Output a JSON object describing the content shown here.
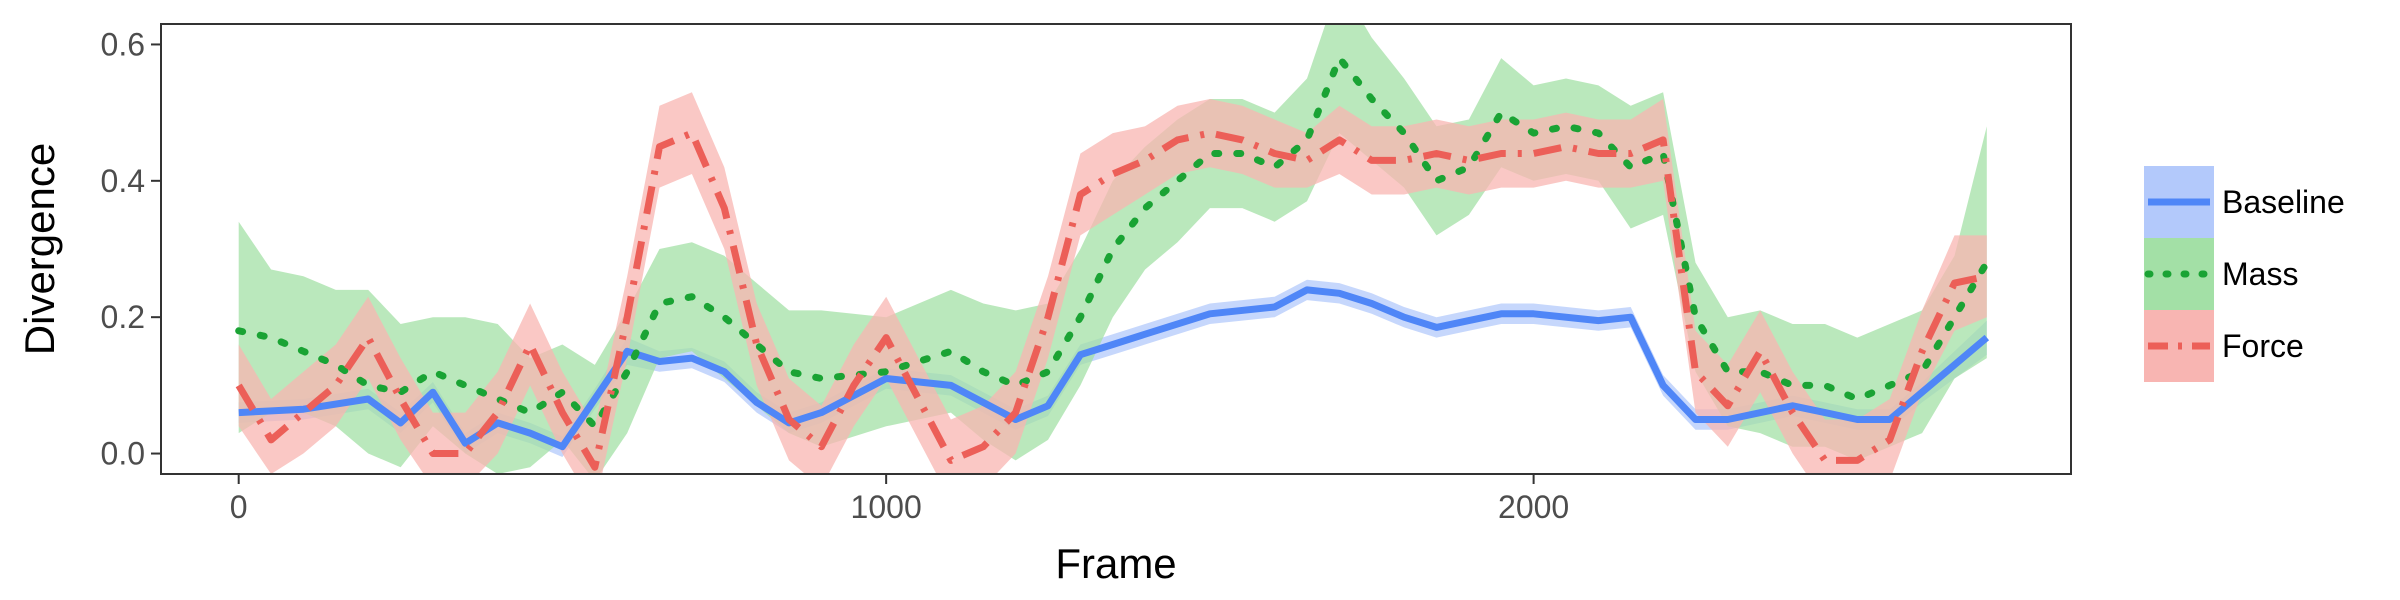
{
  "chart_data": {
    "type": "line",
    "xlabel": "Frame",
    "ylabel": "Divergence",
    "xlim": [
      -120,
      2830
    ],
    "ylim": [
      -0.03,
      0.63
    ],
    "xticks": [
      0,
      1000,
      2000
    ],
    "xtick_labels": [
      "0",
      "1000",
      "2000"
    ],
    "yticks": [
      0.0,
      0.2,
      0.4,
      0.6
    ],
    "ytick_labels": [
      "0.0",
      "0.2",
      "0.4",
      "0.6"
    ],
    "grid": false,
    "legend_position": "right",
    "series": [
      {
        "name": "Baseline",
        "color": "#4f86f7",
        "band_color": "#b3c9fb",
        "line_style": "solid",
        "x": [
          0,
          100,
          200,
          250,
          300,
          350,
          400,
          450,
          500,
          550,
          600,
          650,
          700,
          750,
          800,
          850,
          900,
          1000,
          1100,
          1200,
          1250,
          1300,
          1350,
          1400,
          1500,
          1600,
          1650,
          1700,
          1750,
          1800,
          1850,
          1900,
          1950,
          2000,
          2100,
          2150,
          2200,
          2250,
          2300,
          2400,
          2450,
          2500,
          2550,
          2600,
          2700
        ],
        "y": [
          0.06,
          0.065,
          0.08,
          0.045,
          0.09,
          0.015,
          0.045,
          0.03,
          0.01,
          0.08,
          0.15,
          0.135,
          0.14,
          0.12,
          0.075,
          0.045,
          0.06,
          0.11,
          0.1,
          0.05,
          0.07,
          0.145,
          0.16,
          0.175,
          0.205,
          0.215,
          0.24,
          0.235,
          0.22,
          0.2,
          0.185,
          0.195,
          0.205,
          0.205,
          0.195,
          0.2,
          0.1,
          0.05,
          0.05,
          0.07,
          0.06,
          0.05,
          0.05,
          0.09,
          0.17
        ],
        "lower": [
          0.045,
          0.05,
          0.065,
          0.03,
          0.075,
          0.0,
          0.03,
          0.015,
          -0.005,
          0.065,
          0.13,
          0.12,
          0.125,
          0.105,
          0.06,
          0.03,
          0.045,
          0.095,
          0.085,
          0.035,
          0.055,
          0.13,
          0.145,
          0.16,
          0.19,
          0.2,
          0.225,
          0.22,
          0.205,
          0.185,
          0.17,
          0.18,
          0.19,
          0.19,
          0.18,
          0.185,
          0.085,
          0.035,
          0.035,
          0.055,
          0.045,
          0.035,
          0.035,
          0.075,
          0.145
        ],
        "upper": [
          0.075,
          0.08,
          0.095,
          0.06,
          0.105,
          0.03,
          0.06,
          0.045,
          0.025,
          0.095,
          0.17,
          0.15,
          0.155,
          0.135,
          0.09,
          0.06,
          0.075,
          0.125,
          0.115,
          0.065,
          0.085,
          0.16,
          0.175,
          0.19,
          0.22,
          0.23,
          0.255,
          0.25,
          0.235,
          0.215,
          0.2,
          0.21,
          0.22,
          0.22,
          0.21,
          0.215,
          0.115,
          0.065,
          0.065,
          0.085,
          0.075,
          0.065,
          0.065,
          0.105,
          0.195
        ]
      },
      {
        "name": "Mass",
        "color": "#1aa334",
        "band_color": "#a3e0a6",
        "line_style": "dotted",
        "x": [
          0,
          50,
          100,
          150,
          200,
          250,
          300,
          350,
          400,
          450,
          500,
          550,
          600,
          650,
          700,
          750,
          800,
          850,
          900,
          1000,
          1100,
          1150,
          1200,
          1250,
          1300,
          1350,
          1400,
          1450,
          1500,
          1550,
          1600,
          1650,
          1700,
          1750,
          1800,
          1850,
          1900,
          1950,
          2000,
          2050,
          2100,
          2150,
          2200,
          2250,
          2300,
          2350,
          2400,
          2450,
          2500,
          2550,
          2600,
          2650,
          2700
        ],
        "y": [
          0.18,
          0.17,
          0.15,
          0.13,
          0.1,
          0.09,
          0.12,
          0.1,
          0.08,
          0.06,
          0.09,
          0.04,
          0.12,
          0.22,
          0.23,
          0.2,
          0.16,
          0.12,
          0.11,
          0.12,
          0.15,
          0.12,
          0.1,
          0.12,
          0.2,
          0.3,
          0.36,
          0.4,
          0.44,
          0.44,
          0.42,
          0.46,
          0.58,
          0.52,
          0.47,
          0.4,
          0.42,
          0.5,
          0.47,
          0.48,
          0.47,
          0.42,
          0.44,
          0.2,
          0.12,
          0.12,
          0.1,
          0.1,
          0.08,
          0.1,
          0.12,
          0.2,
          0.28
        ],
        "lower": [
          0.03,
          0.06,
          0.06,
          0.04,
          0.0,
          -0.02,
          0.04,
          0.0,
          -0.03,
          -0.02,
          0.02,
          -0.04,
          0.03,
          0.14,
          0.15,
          0.11,
          0.07,
          0.03,
          0.01,
          0.04,
          0.06,
          0.02,
          -0.01,
          0.02,
          0.1,
          0.2,
          0.27,
          0.31,
          0.36,
          0.36,
          0.34,
          0.37,
          0.47,
          0.43,
          0.39,
          0.32,
          0.35,
          0.42,
          0.4,
          0.41,
          0.4,
          0.33,
          0.35,
          0.12,
          0.04,
          0.03,
          0.01,
          0.01,
          -0.01,
          0.01,
          0.03,
          0.11,
          0.14
        ],
        "upper": [
          0.34,
          0.27,
          0.26,
          0.24,
          0.24,
          0.19,
          0.2,
          0.2,
          0.19,
          0.14,
          0.16,
          0.13,
          0.21,
          0.3,
          0.31,
          0.29,
          0.25,
          0.21,
          0.21,
          0.2,
          0.24,
          0.22,
          0.21,
          0.22,
          0.3,
          0.4,
          0.45,
          0.49,
          0.52,
          0.52,
          0.5,
          0.55,
          0.69,
          0.61,
          0.55,
          0.48,
          0.49,
          0.58,
          0.54,
          0.55,
          0.54,
          0.51,
          0.53,
          0.28,
          0.2,
          0.21,
          0.19,
          0.19,
          0.17,
          0.19,
          0.21,
          0.29,
          0.48
        ]
      },
      {
        "name": "Force",
        "color": "#ec5f58",
        "band_color": "#f8b5b2",
        "line_style": "dashdot",
        "x": [
          0,
          50,
          100,
          150,
          200,
          250,
          300,
          350,
          400,
          450,
          500,
          550,
          600,
          650,
          700,
          750,
          800,
          850,
          900,
          950,
          1000,
          1050,
          1100,
          1150,
          1200,
          1250,
          1300,
          1350,
          1400,
          1450,
          1500,
          1550,
          1600,
          1650,
          1700,
          1750,
          1800,
          1850,
          1900,
          1950,
          2000,
          2050,
          2100,
          2150,
          2200,
          2250,
          2300,
          2350,
          2400,
          2450,
          2500,
          2550,
          2600,
          2650,
          2700
        ],
        "y": [
          0.1,
          0.02,
          0.06,
          0.1,
          0.17,
          0.08,
          0.0,
          0.0,
          0.06,
          0.16,
          0.06,
          -0.02,
          0.2,
          0.45,
          0.47,
          0.36,
          0.16,
          0.05,
          0.01,
          0.1,
          0.17,
          0.08,
          -0.01,
          0.01,
          0.06,
          0.2,
          0.38,
          0.41,
          0.43,
          0.46,
          0.47,
          0.46,
          0.44,
          0.43,
          0.46,
          0.43,
          0.43,
          0.44,
          0.43,
          0.44,
          0.44,
          0.45,
          0.44,
          0.44,
          0.46,
          0.12,
          0.07,
          0.15,
          0.06,
          -0.01,
          -0.01,
          0.02,
          0.15,
          0.25,
          0.26
        ],
        "lower": [
          0.04,
          -0.03,
          0.0,
          0.04,
          0.11,
          0.02,
          -0.05,
          -0.05,
          0.0,
          0.1,
          0.0,
          -0.08,
          0.14,
          0.39,
          0.41,
          0.3,
          0.1,
          -0.01,
          -0.05,
          0.04,
          0.11,
          0.02,
          -0.07,
          -0.05,
          0.0,
          0.14,
          0.32,
          0.35,
          0.38,
          0.41,
          0.42,
          0.41,
          0.39,
          0.39,
          0.41,
          0.38,
          0.38,
          0.39,
          0.38,
          0.39,
          0.39,
          0.4,
          0.39,
          0.39,
          0.4,
          0.06,
          0.01,
          0.09,
          0.0,
          -0.07,
          -0.07,
          -0.04,
          0.09,
          0.18,
          0.2
        ],
        "upper": [
          0.16,
          0.08,
          0.12,
          0.16,
          0.23,
          0.14,
          0.06,
          0.06,
          0.12,
          0.22,
          0.12,
          0.04,
          0.26,
          0.51,
          0.53,
          0.42,
          0.22,
          0.11,
          0.07,
          0.16,
          0.23,
          0.14,
          0.05,
          0.07,
          0.12,
          0.26,
          0.44,
          0.47,
          0.48,
          0.51,
          0.52,
          0.51,
          0.49,
          0.47,
          0.51,
          0.48,
          0.48,
          0.49,
          0.48,
          0.49,
          0.49,
          0.5,
          0.49,
          0.49,
          0.52,
          0.18,
          0.13,
          0.21,
          0.12,
          0.05,
          0.05,
          0.08,
          0.21,
          0.32,
          0.32
        ]
      }
    ]
  }
}
